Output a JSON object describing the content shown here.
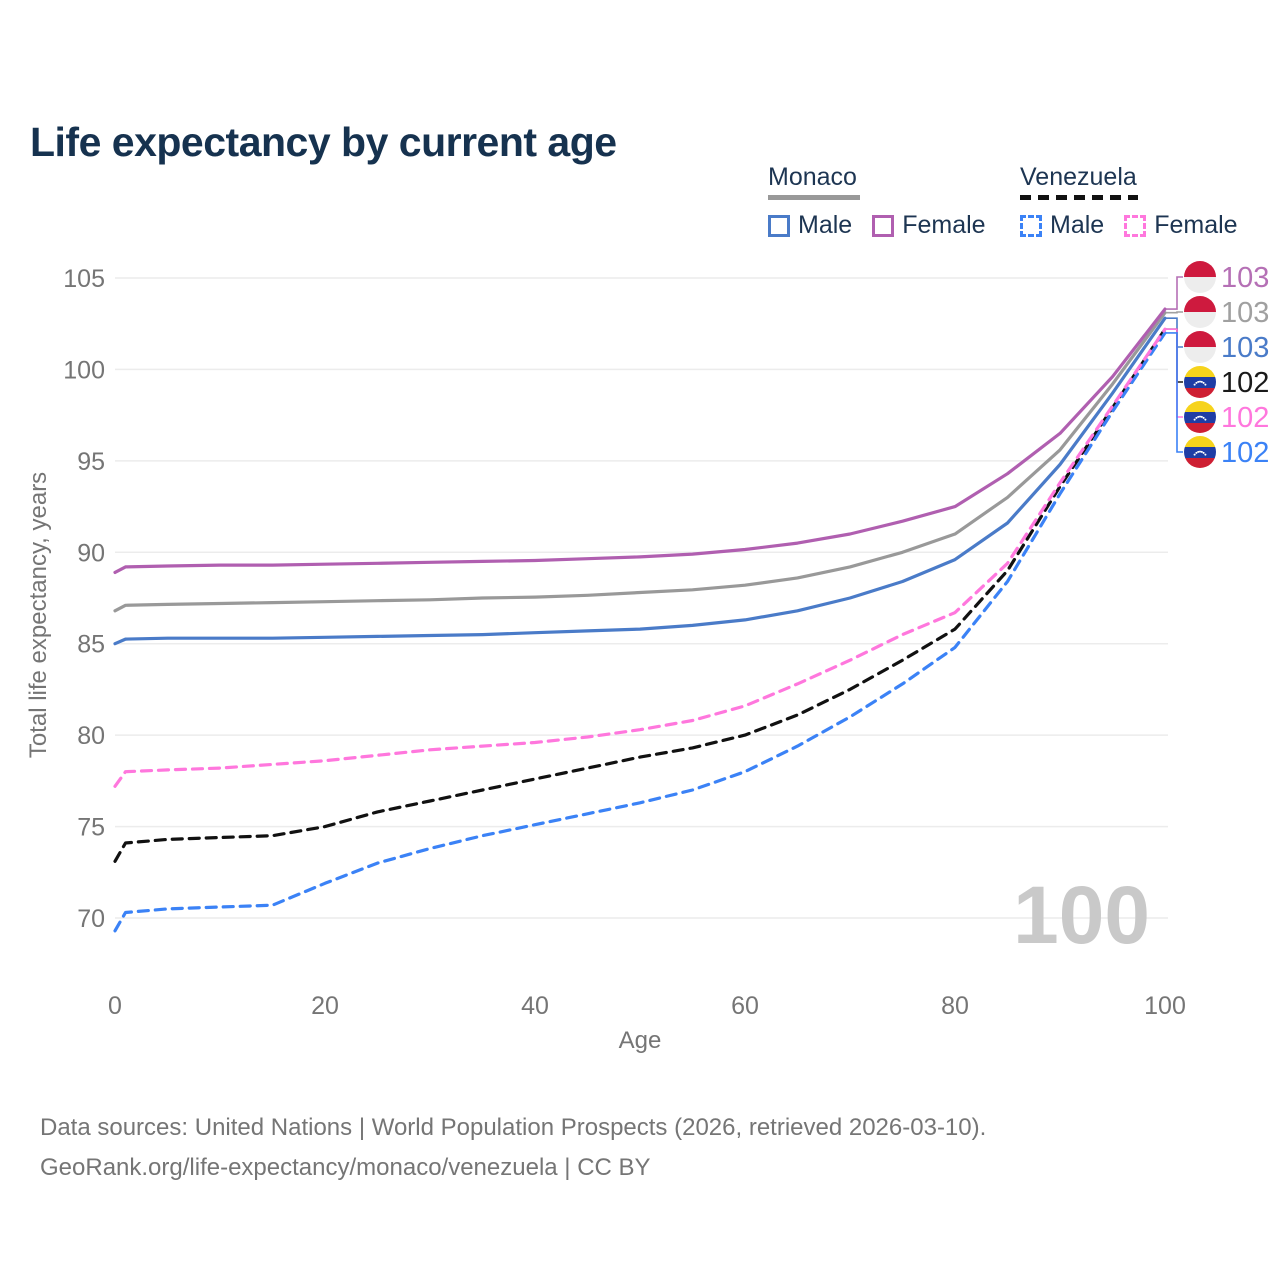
{
  "title": "Life expectancy by current age",
  "legend": {
    "monaco": {
      "title": "Monaco",
      "male": "Male",
      "female": "Female"
    },
    "venezuela": {
      "title": "Venezuela",
      "male": "Male",
      "female": "Female"
    }
  },
  "footer": {
    "line1": "Data sources: United Nations | World Population Prospects (2026, retrieved 2026-03-10).",
    "line2": "GeoRank.org/life-expectancy/monaco/venezuela | CC BY"
  },
  "colors": {
    "monaco_male": "#4a7bc8",
    "monaco_female": "#b05fb0",
    "monaco_both": "#999999",
    "venezuela_male": "#3b82f6",
    "venezuela_female": "#ff77dd",
    "venezuela_both": "#111111",
    "gridline": "#ececec",
    "axis_text": "#757575",
    "watermark": "#c9c9c9",
    "title_text": "#16324f",
    "monaco_flag_red": "#ce1a3e",
    "monaco_flag_white": "#ededed",
    "venezuela_flag_yellow": "#f6d31c",
    "venezuela_flag_blue": "#1f3da5",
    "venezuela_flag_red": "#ce1f33"
  },
  "chart_data": {
    "type": "line",
    "title": "Life expectancy by current age",
    "xlabel": "Age",
    "ylabel": "Total life expectancy, years",
    "xlim": [
      0,
      100
    ],
    "ylim": [
      69,
      105
    ],
    "xticks": [
      0,
      20,
      40,
      60,
      80,
      100
    ],
    "yticks": [
      105,
      100,
      95,
      90,
      85,
      80,
      75,
      70
    ],
    "grid": "horizontal",
    "legend_position": "top-right",
    "watermark": "100",
    "ages": [
      0,
      1,
      5,
      10,
      15,
      20,
      25,
      30,
      35,
      40,
      45,
      50,
      55,
      60,
      65,
      70,
      75,
      80,
      85,
      90,
      95,
      100
    ],
    "series": [
      {
        "id": "monaco-both",
        "country": "Monaco",
        "sex": "Both",
        "style": "solid",
        "color": "#999999",
        "end_label": "103",
        "values": [
          86.8,
          87.1,
          87.15,
          87.2,
          87.25,
          87.3,
          87.35,
          87.4,
          87.5,
          87.55,
          87.65,
          87.8,
          87.95,
          88.2,
          88.6,
          89.2,
          90.0,
          91.0,
          93.0,
          95.6,
          99.2,
          103.1
        ]
      },
      {
        "id": "monaco-male",
        "country": "Monaco",
        "sex": "Male",
        "style": "solid",
        "color": "#4a7bc8",
        "end_label": "103",
        "values": [
          85.0,
          85.25,
          85.3,
          85.3,
          85.3,
          85.35,
          85.4,
          85.45,
          85.5,
          85.6,
          85.7,
          85.8,
          86.0,
          86.3,
          86.8,
          87.5,
          88.4,
          89.6,
          91.6,
          94.8,
          98.7,
          102.8
        ]
      },
      {
        "id": "monaco-female",
        "country": "Monaco",
        "sex": "Female",
        "style": "solid",
        "color": "#b05fb0",
        "end_label": "103",
        "values": [
          88.9,
          89.2,
          89.25,
          89.3,
          89.3,
          89.35,
          89.4,
          89.45,
          89.5,
          89.55,
          89.65,
          89.75,
          89.9,
          90.15,
          90.5,
          91.0,
          91.7,
          92.5,
          94.3,
          96.5,
          99.6,
          103.3
        ]
      },
      {
        "id": "venezuela-both",
        "country": "Venezuela",
        "sex": "Both",
        "style": "dashed",
        "color": "#111111",
        "end_label": "102",
        "values": [
          73.1,
          74.1,
          74.3,
          74.4,
          74.5,
          75.0,
          75.8,
          76.4,
          77.0,
          77.6,
          78.2,
          78.8,
          79.3,
          80.0,
          81.1,
          82.5,
          84.1,
          85.8,
          89.0,
          93.6,
          97.9,
          102.2
        ]
      },
      {
        "id": "venezuela-male",
        "country": "Venezuela",
        "sex": "Male",
        "style": "dashed",
        "color": "#3b82f6",
        "end_label": "102",
        "values": [
          69.3,
          70.3,
          70.5,
          70.6,
          70.7,
          71.9,
          73.0,
          73.8,
          74.5,
          75.1,
          75.7,
          76.3,
          77.0,
          78.0,
          79.4,
          81.0,
          82.8,
          84.8,
          88.4,
          93.2,
          97.7,
          102.0
        ]
      },
      {
        "id": "venezuela-female",
        "country": "Venezuela",
        "sex": "Female",
        "style": "dashed",
        "color": "#ff77dd",
        "end_label": "102",
        "values": [
          77.2,
          78.0,
          78.1,
          78.2,
          78.4,
          78.6,
          78.9,
          79.2,
          79.4,
          79.6,
          79.9,
          80.3,
          80.8,
          81.6,
          82.8,
          84.1,
          85.5,
          86.7,
          89.4,
          93.8,
          98.0,
          102.2
        ]
      }
    ],
    "end_labels": [
      {
        "series": "monaco-female",
        "value": "103",
        "flag": "monaco",
        "color": "#b570b5"
      },
      {
        "series": "monaco-both",
        "value": "103",
        "flag": "monaco",
        "color": "#a0a0a0"
      },
      {
        "series": "monaco-male",
        "value": "103",
        "flag": "monaco",
        "color": "#4a7bc8"
      },
      {
        "series": "venezuela-both",
        "value": "102",
        "flag": "venezuela",
        "color": "#1a1a1a"
      },
      {
        "series": "venezuela-female",
        "value": "102",
        "flag": "venezuela",
        "color": "#ff77dd"
      },
      {
        "series": "venezuela-male",
        "value": "102",
        "flag": "venezuela",
        "color": "#3b82f6"
      }
    ]
  }
}
